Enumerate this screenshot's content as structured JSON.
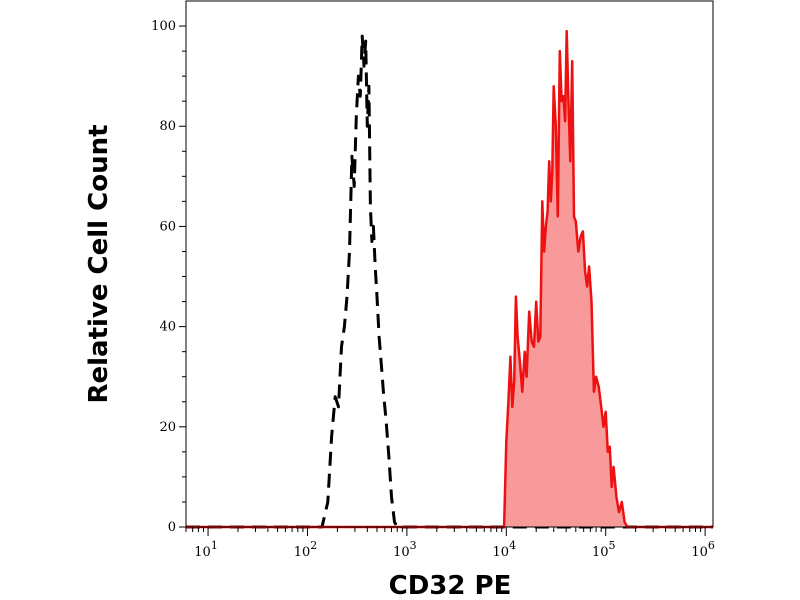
{
  "chart_data": {
    "type": "area",
    "title": "",
    "xlabel": "CD32 PE",
    "ylabel": "Relative Cell Count",
    "x_scale": "log",
    "xlim": [
      6,
      1200000
    ],
    "ylim": [
      0,
      105
    ],
    "grid": false,
    "y_ticks": [
      0,
      20,
      40,
      60,
      80,
      100
    ],
    "y_tick_labels": [
      "0",
      "20",
      "40",
      "60",
      "80",
      "100"
    ],
    "x_major_ticks": [
      10,
      100,
      1000,
      10000,
      100000,
      1000000
    ],
    "x_tick_base": "10",
    "x_tick_exponents": [
      "1",
      "2",
      "3",
      "4",
      "5",
      "6"
    ],
    "series": [
      {
        "style": "dashed",
        "color": "#000000",
        "fill": "none",
        "x": [
          6,
          140,
          160,
          175,
          190,
          205,
          220,
          235,
          250,
          265,
          280,
          295,
          310,
          325,
          340,
          355,
          370,
          385,
          400,
          415,
          430,
          445,
          460,
          480,
          500,
          525,
          550,
          580,
          620,
          660,
          700,
          750,
          800,
          1200000
        ],
        "y": [
          0,
          0,
          5,
          18,
          26,
          24,
          36,
          40,
          46,
          55,
          74,
          68,
          82,
          90,
          86,
          98,
          92,
          97,
          80,
          88,
          64,
          57,
          60,
          52,
          46,
          38,
          33,
          27,
          21,
          14,
          6,
          1,
          0,
          0
        ]
      },
      {
        "style": "solid",
        "color": "#ee1111",
        "fill": "#f89a9a",
        "x": [
          6,
          9500,
          10000,
          10500,
          11000,
          11500,
          12000,
          12500,
          13000,
          13700,
          14500,
          15300,
          16000,
          17000,
          18000,
          19000,
          20000,
          21000,
          22000,
          23000,
          24000,
          25000,
          26000,
          27000,
          28000,
          29000,
          30000,
          31500,
          33000,
          34500,
          36000,
          37500,
          39000,
          40500,
          42000,
          44000,
          46000,
          48000,
          50000,
          53000,
          56000,
          59000,
          62000,
          65000,
          68000,
          72000,
          76000,
          80000,
          85000,
          90000,
          95000,
          100000,
          105000,
          110000,
          115000,
          120000,
          128000,
          136000,
          145000,
          155000,
          165000,
          1200000
        ],
        "y": [
          0,
          0,
          17,
          25,
          34,
          24,
          29,
          46,
          38,
          33,
          27,
          35,
          30,
          43,
          37,
          36,
          45,
          37,
          38,
          65,
          55,
          60,
          63,
          73,
          65,
          71,
          88,
          80,
          62,
          95,
          85,
          86,
          81,
          99,
          86,
          73,
          93,
          62,
          61,
          55,
          58,
          59,
          51,
          48,
          52,
          45,
          27,
          30,
          28,
          24,
          20,
          23,
          15,
          16,
          8,
          12,
          6,
          3,
          5,
          1,
          0,
          0
        ]
      }
    ]
  }
}
